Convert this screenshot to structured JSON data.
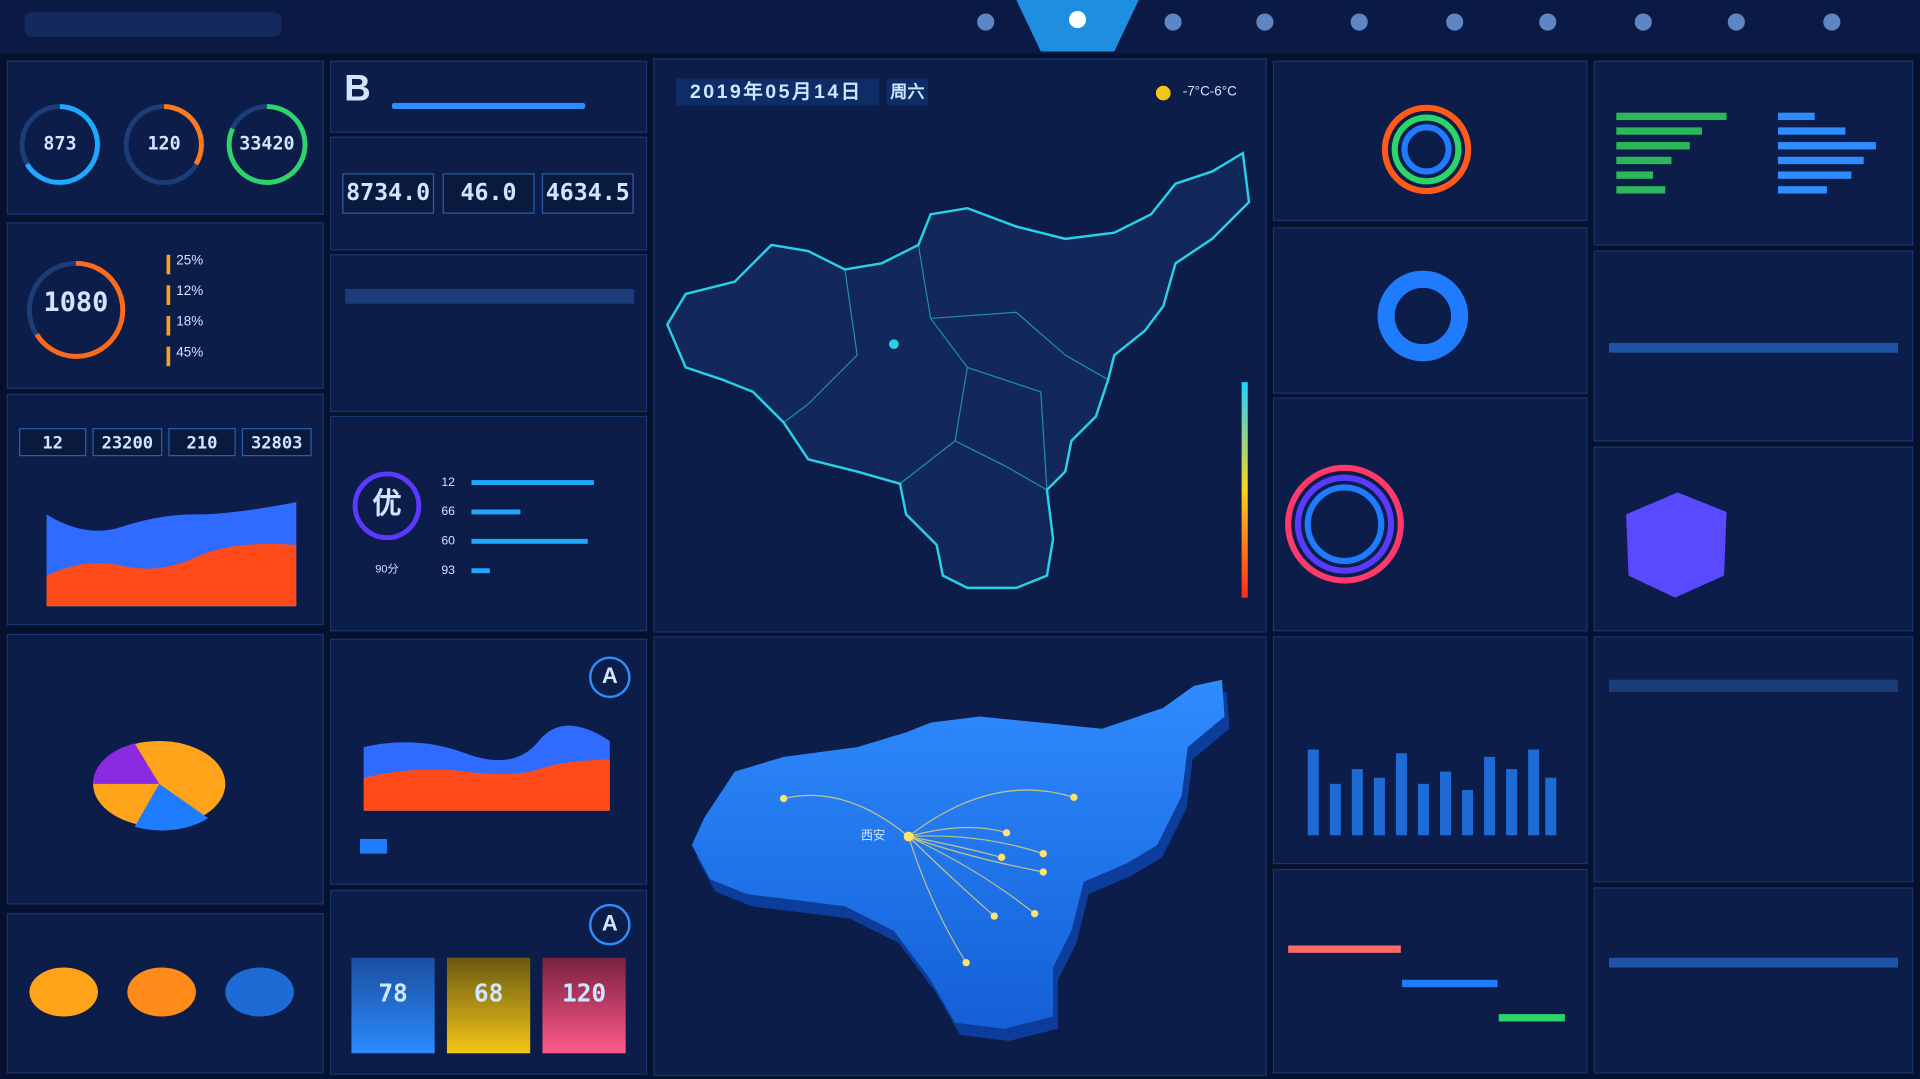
{
  "header": {
    "date": "2019年05月14日",
    "weekday": "周六",
    "weather": "-7°C-6°C"
  },
  "gauges": [
    "873",
    "120",
    "33420"
  ],
  "energy": {
    "value": "1080",
    "shares": [
      "25%",
      "12%",
      "18%",
      "45%"
    ]
  },
  "stats": [
    "12",
    "23200",
    "210",
    "32803"
  ],
  "grade": {
    "letter": "B"
  },
  "totals": [
    "8734.0",
    "46.0",
    "4634.5"
  ],
  "rating": {
    "label": "优",
    "score": "90分",
    "bars": [
      "12",
      "66",
      "60",
      "93"
    ]
  },
  "quality": {
    "grade": "A"
  },
  "equipment": {
    "grade": "A",
    "cards": [
      "78",
      "68",
      "120"
    ]
  },
  "map": {
    "city": "西安"
  }
}
